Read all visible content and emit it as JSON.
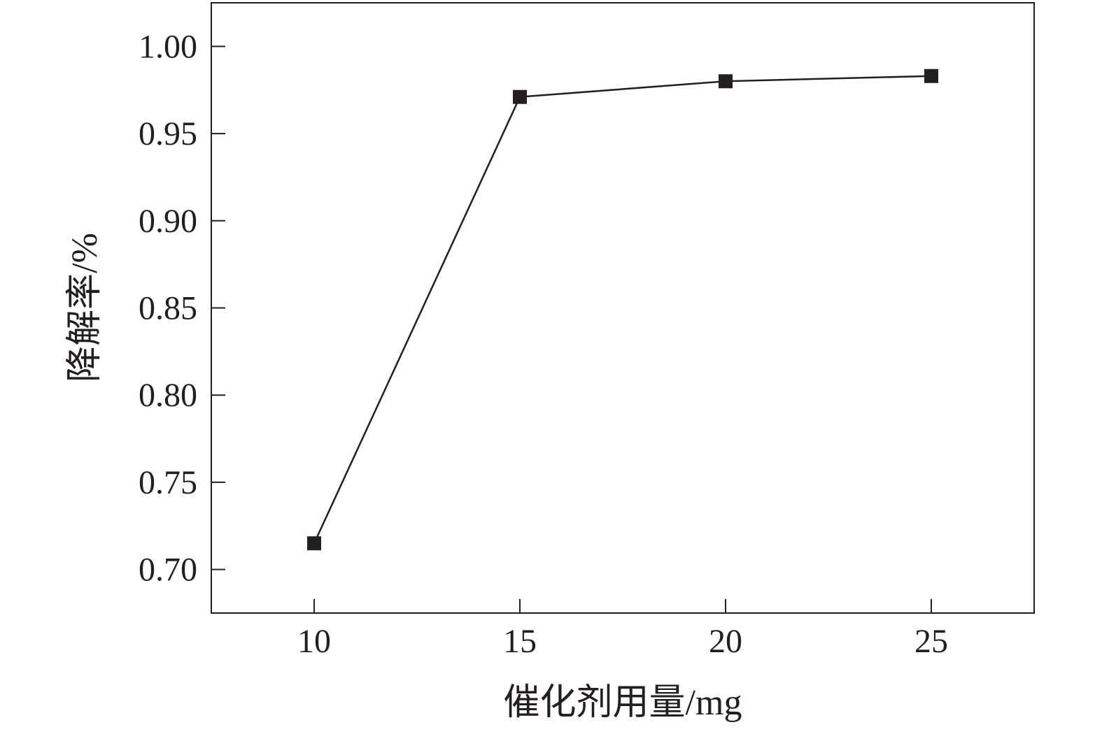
{
  "chart_data": {
    "type": "line",
    "title": "",
    "xlabel": "催化剂用量/mg",
    "ylabel": "降解率/%",
    "x": [
      10,
      15,
      20,
      25
    ],
    "series": [
      {
        "values": [
          0.715,
          0.971,
          0.98,
          0.983
        ],
        "marker": "square",
        "color": "#231f20"
      }
    ],
    "xlim": [
      7.5,
      27.5
    ],
    "ylim": [
      0.675,
      1.025
    ],
    "xticks": [
      10,
      15,
      20,
      25
    ],
    "xtick_labels": [
      "10",
      "15",
      "20",
      "25"
    ],
    "yticks": [
      0.7,
      0.75,
      0.8,
      0.85,
      0.9,
      0.95,
      1.0
    ],
    "ytick_labels": [
      "0.70",
      "0.75",
      "0.80",
      "0.85",
      "0.90",
      "0.95",
      "1.00"
    ],
    "grid": false,
    "legend": "none"
  }
}
